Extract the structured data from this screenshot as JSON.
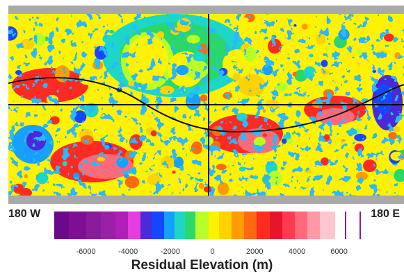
{
  "map": {
    "west_label": "180 W",
    "east_label": "180 E",
    "colormap": [
      "#6a0a8a",
      "#8a1b9c",
      "#b01fb8",
      "#e83be0",
      "#4a2ad9",
      "#1447ff",
      "#13a0ff",
      "#1ed6c8",
      "#2cd86a",
      "#b8ff28",
      "#fff200",
      "#ffd200",
      "#ff9a00",
      "#ff6a10",
      "#ff2a20",
      "#e5162a",
      "#ff6a7a",
      "#ffc6cd",
      "#ffffff"
    ]
  },
  "colorbar": {
    "title": "Residual Elevation (m)",
    "tick_labels": [
      "-6000",
      "-4000",
      "-2000",
      "0",
      "2000",
      "4000",
      "6000"
    ],
    "tick_values": [
      -6000,
      -4000,
      -2000,
      0,
      2000,
      4000,
      6000
    ],
    "range": [
      -7500,
      7000
    ],
    "bands": [
      {
        "from": -7500,
        "to": -6800,
        "color": "#6a0a8a"
      },
      {
        "from": -6800,
        "to": -6000,
        "color": "#7e0f95"
      },
      {
        "from": -6000,
        "to": -5300,
        "color": "#8a1b9c"
      },
      {
        "from": -5300,
        "to": -4600,
        "color": "#9a20a8"
      },
      {
        "from": -4600,
        "to": -4000,
        "color": "#b01fb8"
      },
      {
        "from": -4000,
        "to": -3400,
        "color": "#e83be0"
      },
      {
        "from": -3400,
        "to": -2900,
        "color": "#4a2ad9"
      },
      {
        "from": -2900,
        "to": -2300,
        "color": "#1447ff"
      },
      {
        "from": -2300,
        "to": -1800,
        "color": "#13a0ff"
      },
      {
        "from": -1800,
        "to": -1300,
        "color": "#1ed6c8"
      },
      {
        "from": -1300,
        "to": -800,
        "color": "#2cd86a"
      },
      {
        "from": -800,
        "to": -200,
        "color": "#b8ff28"
      },
      {
        "from": -200,
        "to": 300,
        "color": "#fff200"
      },
      {
        "from": 300,
        "to": 900,
        "color": "#ffd200"
      },
      {
        "from": 900,
        "to": 1500,
        "color": "#ff9a00"
      },
      {
        "from": 1500,
        "to": 2100,
        "color": "#ff6a10"
      },
      {
        "from": 2100,
        "to": 2700,
        "color": "#ff2a20"
      },
      {
        "from": 2700,
        "to": 3300,
        "color": "#e5162a"
      },
      {
        "from": 3300,
        "to": 3900,
        "color": "#ff3a50"
      },
      {
        "from": 3900,
        "to": 4500,
        "color": "#ff6a7a"
      },
      {
        "from": 4500,
        "to": 5100,
        "color": "#ff9aa6"
      },
      {
        "from": 5100,
        "to": 5800,
        "color": "#ffc6cd"
      },
      {
        "from": 5800,
        "to": 6300,
        "color": "#ffffff"
      }
    ],
    "markers": [
      6300,
      7000
    ]
  }
}
